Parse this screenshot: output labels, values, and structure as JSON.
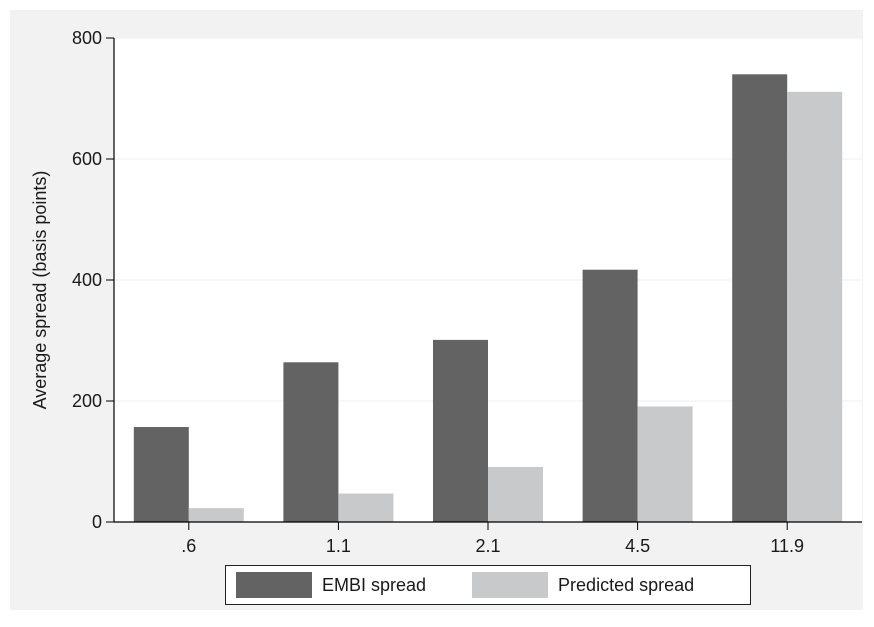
{
  "chart_data": {
    "type": "bar",
    "categories": [
      ".6",
      "1.1",
      "2.1",
      "4.5",
      "11.9"
    ],
    "series": [
      {
        "name": "EMBI spread",
        "values": [
          157,
          264,
          301,
          417,
          740
        ],
        "color": "#636363"
      },
      {
        "name": "Predicted spread",
        "values": [
          23,
          47,
          91,
          191,
          711
        ],
        "color": "#c8c9cb"
      }
    ],
    "ylabel": "Average spread (basis points)",
    "xlabel": "",
    "ylim": [
      0,
      800
    ],
    "yticks": [
      "0",
      "200",
      "400",
      "600",
      "800"
    ],
    "grid": true,
    "legend_position": "bottom"
  },
  "colors": {
    "plot_background": "#ffffff",
    "outer_background": "#f2f2f2",
    "grid": "#eaf2f3",
    "axis": "#000000"
  }
}
